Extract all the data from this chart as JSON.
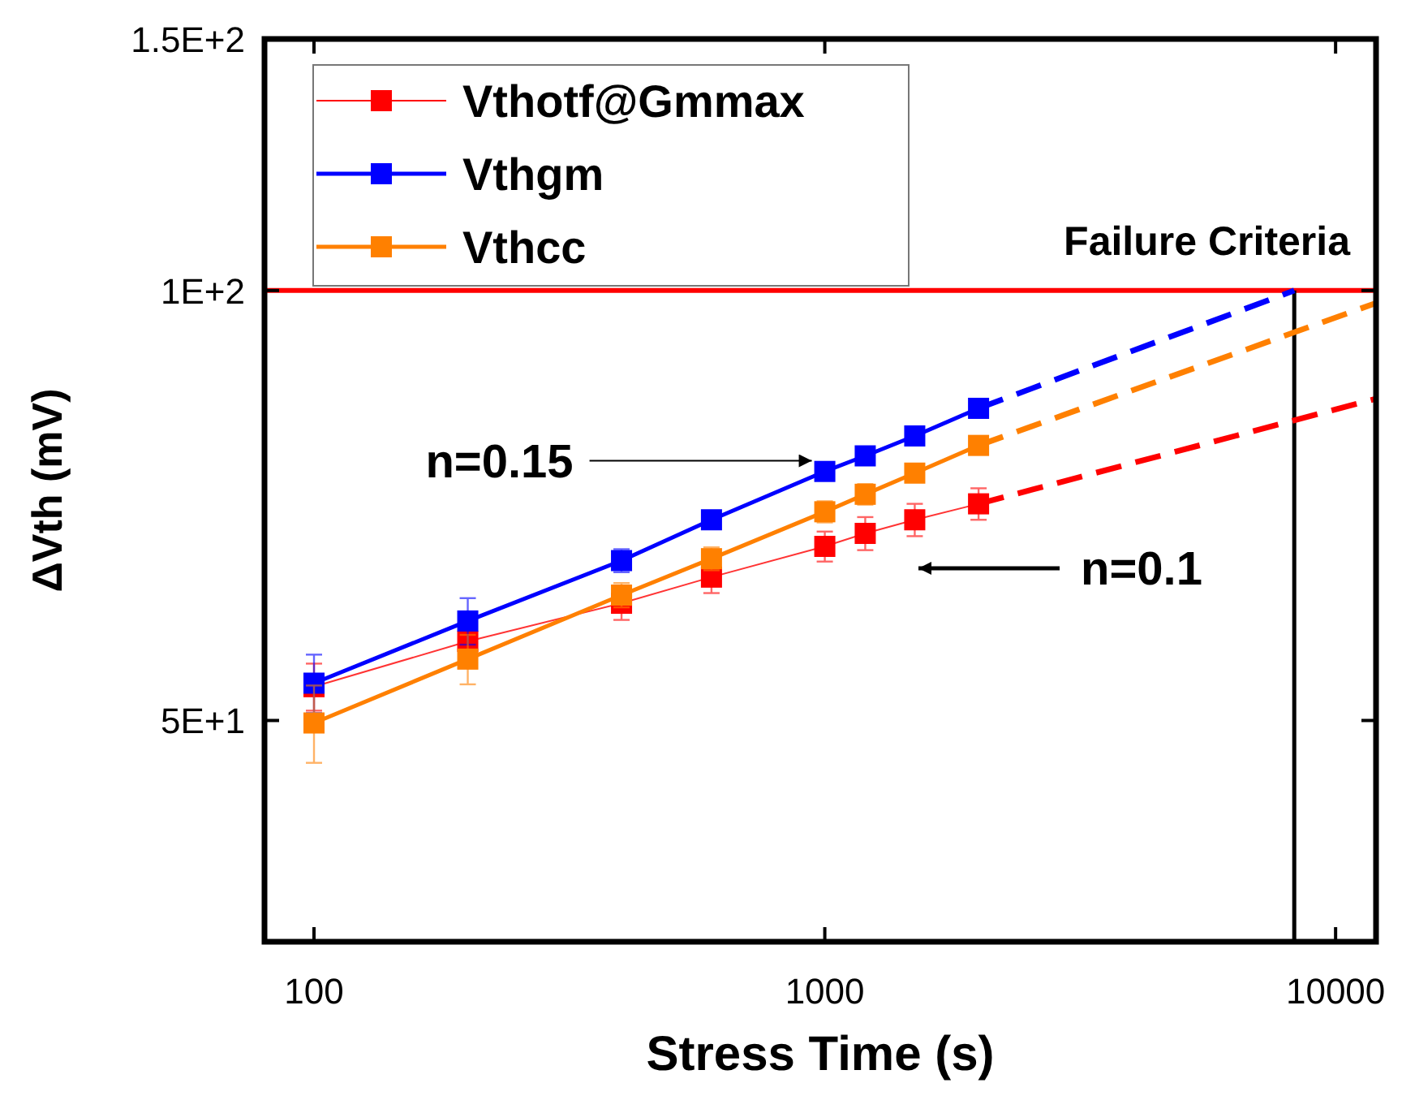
{
  "chart_data": {
    "type": "line",
    "xlabel": "Stress Time (s)",
    "ylabel": "ΔVth (mV)",
    "log": "xy",
    "marker": "square",
    "legend": "top left",
    "grid": false,
    "x": [
      100,
      200,
      400,
      600,
      1000,
      1200,
      1500,
      2000
    ],
    "xlim": [
      80,
      12000
    ],
    "xticks": [
      100,
      1000,
      10000
    ],
    "ylim": [
      35,
      150
    ],
    "yticks": [
      {
        "value": 50,
        "label": "5E+1"
      },
      {
        "value": 100,
        "label": "1E+2"
      },
      {
        "value": 150,
        "label": "1.5E+2"
      }
    ],
    "series": [
      {
        "name": "Vthotf@Gmmax",
        "color": "#ff0000",
        "values": [
          52.8,
          56.8,
          60.4,
          63.0,
          66.2,
          67.6,
          69.1,
          70.9
        ],
        "errors": [
          2,
          null,
          1.6,
          1.6,
          1.6,
          1.8,
          1.8,
          1.8
        ]
      },
      {
        "name": "Vthgm",
        "color": "#0000ff",
        "values": [
          53.1,
          58.7,
          64.7,
          69.1,
          74.7,
          76.6,
          79.1,
          82.7
        ],
        "errors": [
          2.5,
          2.2,
          1.2,
          null,
          null,
          null,
          null,
          null
        ]
      },
      {
        "name": "Vthcc",
        "color": "#ff8000",
        "values": [
          49.8,
          55.2,
          61.2,
          64.9,
          70.0,
          72.0,
          74.5,
          77.9
        ],
        "errors": [
          3.1,
          2.2,
          1.2,
          1.2,
          1.2,
          1.2,
          null,
          null
        ]
      },
      {
        "type": "line",
        "line_style": "dashed",
        "marker": "none",
        "color": "#0000ff",
        "x": [
          2000,
          8300
        ],
        "values": [
          82.7,
          100
        ]
      },
      {
        "type": "line",
        "line_style": "dashed",
        "marker": "none",
        "color": "#ff8000",
        "x": [
          2000,
          12000
        ],
        "values": [
          77.9,
          98
        ]
      },
      {
        "type": "line",
        "line_style": "dashed",
        "marker": "none",
        "color": "#ff0000",
        "x": [
          2000,
          12000
        ],
        "values": [
          70.9,
          84
        ]
      }
    ],
    "ref_lines": [
      {
        "axis": "y",
        "value": 100,
        "label": "Failure Criteria",
        "color": "#ff0000"
      },
      {
        "axis": "x",
        "value": 8300,
        "color": "#000000"
      }
    ],
    "annotations": [
      {
        "text": "n=0.15",
        "x": 1000,
        "y": 76
      },
      "n=0.1"
    ]
  }
}
